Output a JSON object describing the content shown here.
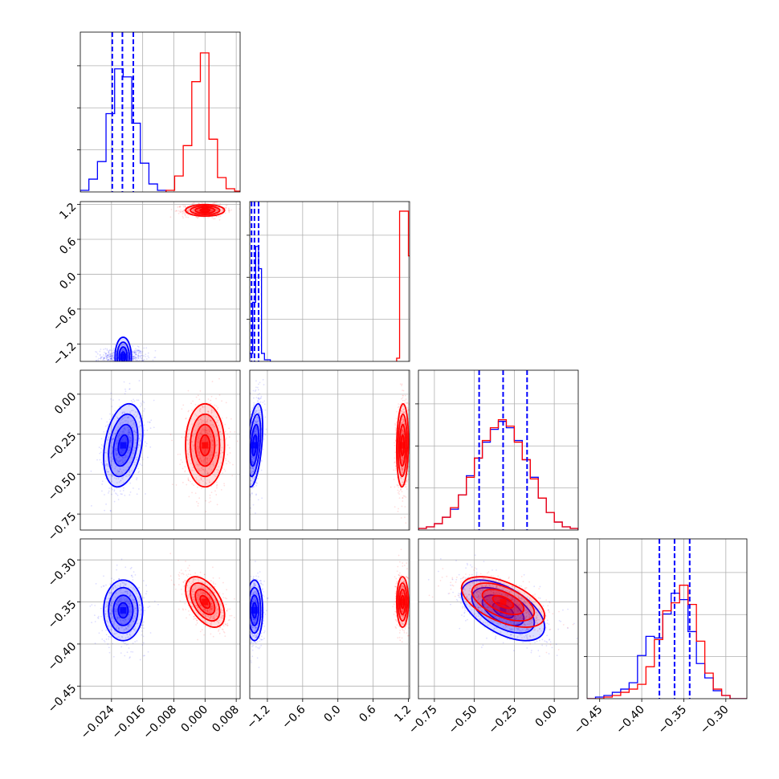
{
  "chart_data": {
    "type": "corner",
    "title": "",
    "parameters": [
      {
        "xlim": [
          -0.032,
          0.009
        ],
        "ticks": [
          -0.024,
          -0.016,
          -0.008,
          0.0,
          0.008
        ],
        "tick_labels": [
          "−0.024",
          "−0.016",
          "−0.008",
          "0.000",
          "0.008"
        ]
      },
      {
        "xlim": [
          -1.5,
          1.22
        ],
        "ticks": [
          -1.2,
          -0.6,
          0.0,
          0.6,
          1.2
        ],
        "tick_labels": [
          "−1.2",
          "−0.6",
          "0.0",
          "0.6",
          "1.2"
        ]
      },
      {
        "xlim": [
          -0.85,
          0.15
        ],
        "ticks": [
          -0.75,
          -0.5,
          -0.25,
          0.0
        ],
        "tick_labels": [
          "−0.75",
          "−0.50",
          "−0.25",
          "0.00"
        ]
      },
      {
        "xlim": [
          -0.465,
          -0.275
        ],
        "ticks": [
          -0.45,
          -0.4,
          -0.35,
          -0.3
        ],
        "tick_labels": [
          "−0.45",
          "−0.40",
          "−0.35",
          "−0.30"
        ]
      }
    ],
    "series": [
      {
        "color": "#0000ff",
        "means": [
          -0.021,
          -1.42,
          -0.32,
          -0.36
        ],
        "sds": [
          0.0025,
          0.07,
          0.13,
          0.018
        ],
        "correlations": {
          "0_2": 0.3,
          "1_2": 0.45,
          "0_3": 0.0,
          "1_3": 0.0,
          "2_3": -0.55
        },
        "quantile_lines": [
          [
            -0.0238,
            -0.0212,
            -0.0184
          ],
          [
            -1.47,
            -1.42,
            -1.35
          ],
          [
            -0.47,
            -0.32,
            -0.17
          ],
          [
            -0.379,
            -0.361,
            -0.343
          ]
        ],
        "histograms": [
          {
            "edges": [
              -0.032,
              -0.0298,
              -0.0276,
              -0.0254,
              -0.0232,
              -0.021,
              -0.0188,
              -0.0166,
              -0.0144,
              -0.0122,
              -0.01
            ],
            "counts": [
              0.01,
              0.08,
              0.19,
              0.49,
              0.77,
              0.72,
              0.43,
              0.18,
              0.05,
              0.01
            ]
          },
          {
            "edges": [
              -1.6,
              -1.5,
              -1.45,
              -1.4,
              -1.35,
              -1.3,
              -1.25,
              -1.15
            ],
            "counts": [
              0.02,
              0.05,
              0.37,
              0.72,
              0.58,
              0.05,
              0.01
            ]
          },
          {
            "edges": [
              -0.85,
              -0.8,
              -0.75,
              -0.7,
              -0.65,
              -0.6,
              -0.55,
              -0.5,
              -0.45,
              -0.4,
              -0.35,
              -0.3,
              -0.25,
              -0.2,
              -0.15,
              -0.1,
              -0.05,
              0.0,
              0.05,
              0.1,
              0.15
            ],
            "counts": [
              0.01,
              0.02,
              0.04,
              0.08,
              0.13,
              0.22,
              0.34,
              0.45,
              0.55,
              0.63,
              0.68,
              0.64,
              0.56,
              0.44,
              0.33,
              0.2,
              0.11,
              0.05,
              0.02,
              0.01
            ]
          },
          {
            "edges": [
              -0.465,
              -0.455,
              -0.445,
              -0.435,
              -0.425,
              -0.415,
              -0.405,
              -0.395,
              -0.385,
              -0.375,
              -0.365,
              -0.355,
              -0.345,
              -0.335,
              -0.325,
              -0.315,
              -0.305,
              -0.295,
              -0.285,
              -0.275
            ],
            "counts": [
              0.0,
              0.01,
              0.02,
              0.04,
              0.06,
              0.1,
              0.27,
              0.39,
              0.38,
              0.53,
              0.66,
              0.62,
              0.42,
              0.22,
              0.13,
              0.05,
              0.02,
              0.0,
              0.0
            ]
          }
        ]
      },
      {
        "color": "#ff0000",
        "means": [
          0.0,
          1.1,
          -0.32,
          -0.35
        ],
        "sds": [
          0.0025,
          0.05,
          0.13,
          0.015
        ],
        "correlations": {
          "0_2": 0.0,
          "1_2": 0.1,
          "0_3": -0.5,
          "1_3": 0.0,
          "2_3": -0.55
        },
        "quantile_lines": null,
        "histograms": [
          {
            "edges": [
              -0.01,
              -0.0078,
              -0.0056,
              -0.0034,
              -0.0012,
              0.001,
              0.0032,
              0.0054,
              0.0076,
              0.0098
            ],
            "counts": [
              0.01,
              0.1,
              0.29,
              0.69,
              0.87,
              0.33,
              0.09,
              0.02,
              0.005
            ]
          },
          {
            "edges": [
              1.0,
              1.05,
              1.2,
              1.25
            ],
            "counts": [
              0.02,
              0.94,
              0.66
            ]
          },
          {
            "edges": [
              -0.85,
              -0.8,
              -0.75,
              -0.7,
              -0.65,
              -0.6,
              -0.55,
              -0.5,
              -0.45,
              -0.4,
              -0.35,
              -0.3,
              -0.25,
              -0.2,
              -0.15,
              -0.1,
              -0.05,
              0.0,
              0.05,
              0.1,
              0.15
            ],
            "counts": [
              0.01,
              0.02,
              0.04,
              0.08,
              0.14,
              0.22,
              0.33,
              0.45,
              0.56,
              0.64,
              0.69,
              0.65,
              0.55,
              0.44,
              0.32,
              0.2,
              0.11,
              0.05,
              0.02,
              0.01
            ]
          },
          {
            "edges": [
              -0.465,
              -0.455,
              -0.445,
              -0.435,
              -0.425,
              -0.415,
              -0.405,
              -0.395,
              -0.385,
              -0.375,
              -0.365,
              -0.355,
              -0.345,
              -0.335,
              -0.325,
              -0.315,
              -0.305,
              -0.295,
              -0.285,
              -0.275
            ],
            "counts": [
              0.0,
              0.0,
              0.01,
              0.02,
              0.04,
              0.06,
              0.09,
              0.2,
              0.37,
              0.55,
              0.6,
              0.71,
              0.59,
              0.36,
              0.16,
              0.06,
              0.02,
              0.0,
              0.0
            ]
          }
        ]
      }
    ],
    "grid": true,
    "legend": "none"
  }
}
